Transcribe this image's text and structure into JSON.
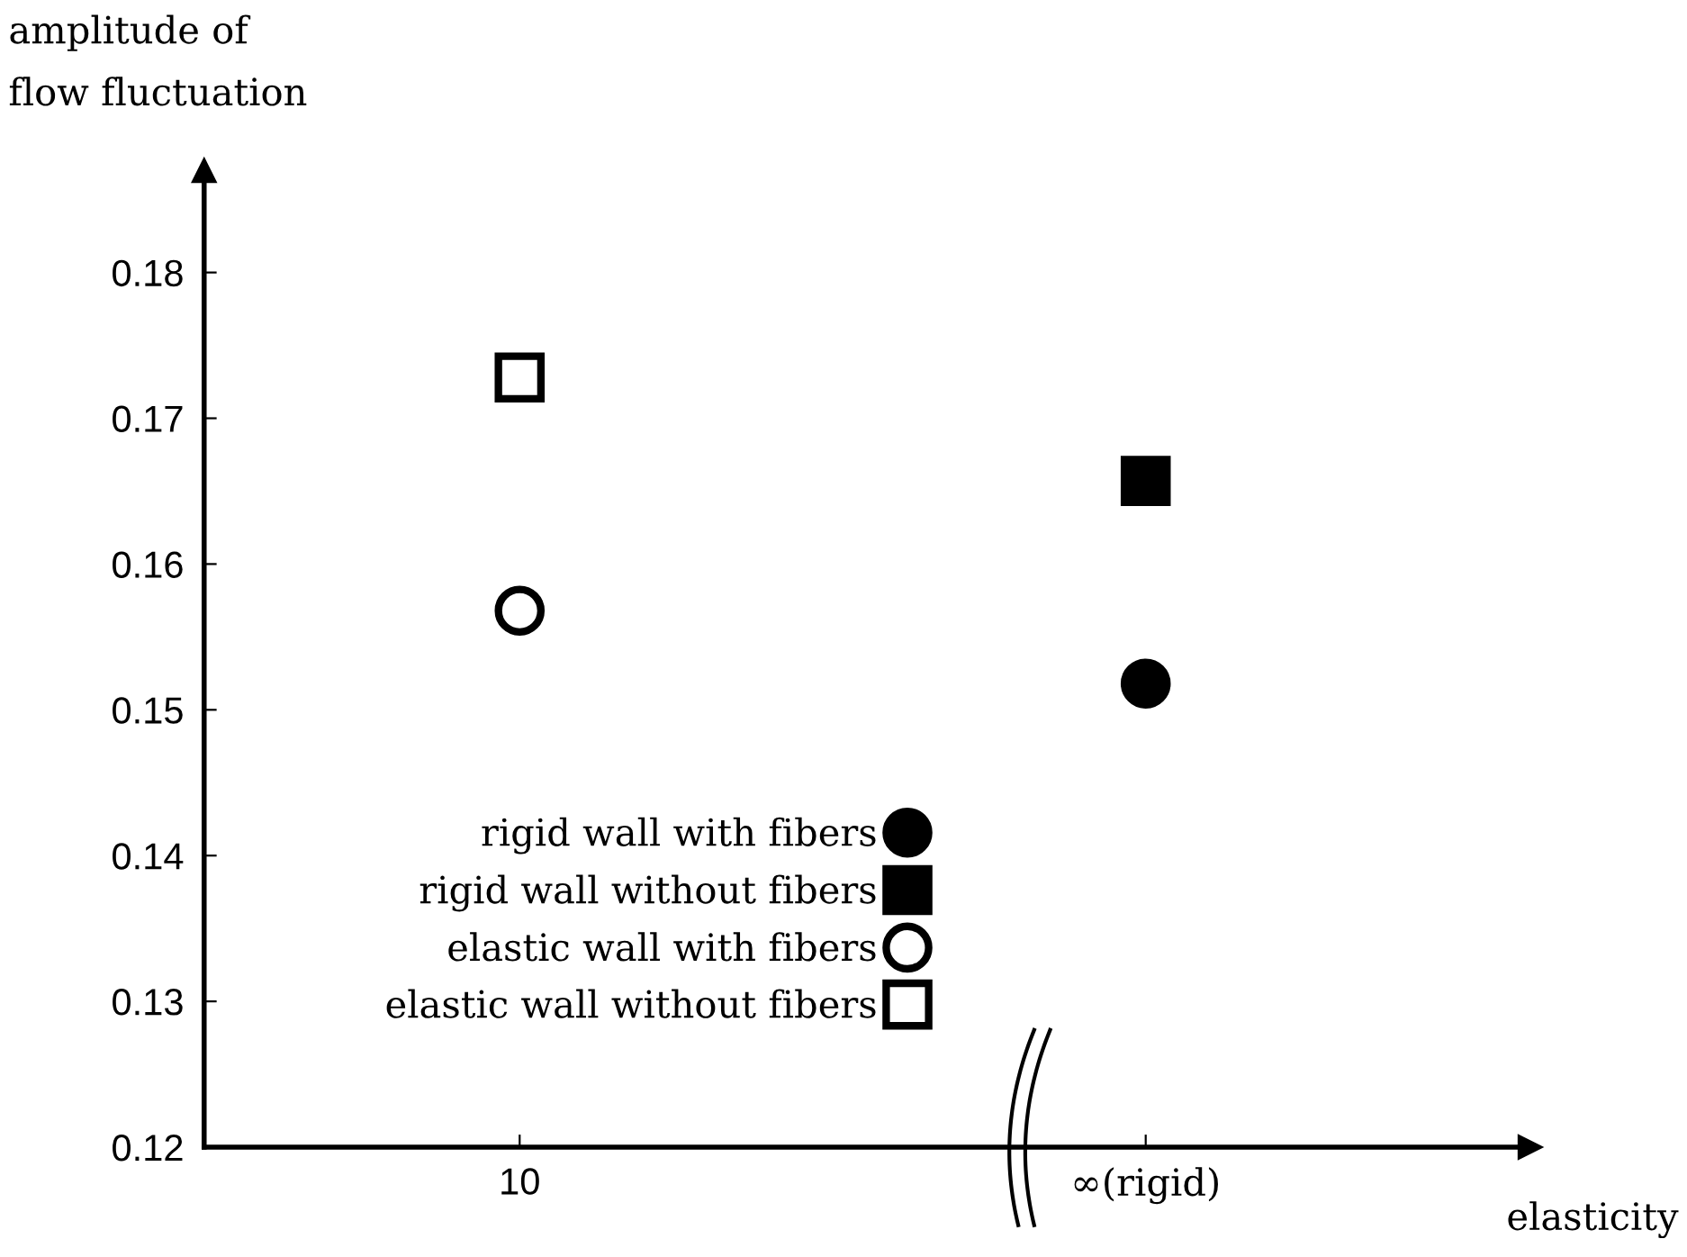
{
  "chart_data": {
    "type": "scatter",
    "ylabel": "amplitude of\nflow fluctuation",
    "xlabel": "elasticity",
    "categories": [
      "10",
      "∞(rigid)"
    ],
    "series": [
      {
        "name": "rigid wall with fibers",
        "color": "#000000",
        "marker": "circle",
        "colors": [
          "#000000",
          "#000000"
        ],
        "values": [
          null,
          0.1518
        ]
      },
      {
        "name": "rigid wall without fibers",
        "color": "#000000",
        "marker": "square",
        "colors": [
          "#000000",
          "#000000"
        ],
        "values": [
          null,
          0.1657
        ]
      },
      {
        "name": "elastic wall with fibers",
        "color": "#000000",
        "marker": "circle",
        "colors": [
          "#ffffff",
          "#ffffff"
        ],
        "values": [
          0.1568,
          null
        ]
      },
      {
        "name": "elastic wall without fibers",
        "color": "#000000",
        "marker": "square",
        "colors": [
          "#ffffff",
          "#ffffff"
        ],
        "values": [
          0.1728,
          null
        ]
      }
    ],
    "ylim": [
      0.12,
      0.187
    ],
    "yticks": [
      0.12,
      0.13,
      0.14,
      0.15,
      0.16,
      0.17,
      0.18
    ],
    "grid": false,
    "legend": "bottom left"
  }
}
